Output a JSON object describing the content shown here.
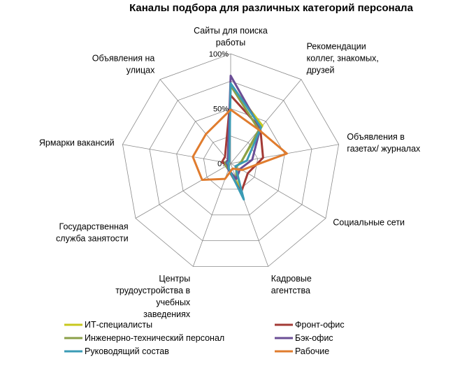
{
  "chart_data": {
    "type": "radar",
    "title": "Каналы подбора для различных категорий персонала",
    "categories": [
      [
        "Сайты для поиска",
        "работы"
      ],
      [
        "Рекомендации",
        "коллег, знакомых,",
        "друзей"
      ],
      [
        "Объявления в",
        "газетах/ журналах"
      ],
      [
        "Социальные сети"
      ],
      [
        "Кадровые",
        "агентства"
      ],
      [
        "Центры",
        "трудоустройства в",
        "учебных",
        "заведениях"
      ],
      [
        "Государственная",
        "служба занятости"
      ],
      [
        "Ярмарки вакансий"
      ],
      [
        "Объявления на",
        "улицах"
      ]
    ],
    "tick_labels": [
      "0%",
      "50%",
      "100%"
    ],
    "rlim": [
      0,
      100
    ],
    "series": [
      {
        "name": "ИТ-специалисты",
        "color": "#c8c81e",
        "values": [
          72,
          45,
          10,
          6,
          25,
          5,
          2,
          2,
          3
        ]
      },
      {
        "name": "Фронт-офис",
        "color": "#a33a35",
        "values": [
          62,
          42,
          30,
          18,
          28,
          6,
          4,
          8,
          8
        ]
      },
      {
        "name": "Инженерно-технический персонал",
        "color": "#8ba048",
        "values": [
          71,
          40,
          10,
          6,
          15,
          6,
          5,
          5,
          4
        ]
      },
      {
        "name": "Бэк-офис",
        "color": "#6b4e96",
        "values": [
          80,
          42,
          20,
          10,
          15,
          6,
          3,
          4,
          4
        ]
      },
      {
        "name": "Руководящий состав",
        "color": "#3a9bb5",
        "values": [
          73,
          43,
          15,
          5,
          35,
          5,
          2,
          3,
          2
        ]
      },
      {
        "name": "Рабочие",
        "color": "#e07c2e",
        "values": [
          49,
          40,
          52,
          12,
          5,
          15,
          30,
          35,
          35
        ]
      }
    ],
    "legend_position": "bottom",
    "grid": true
  }
}
